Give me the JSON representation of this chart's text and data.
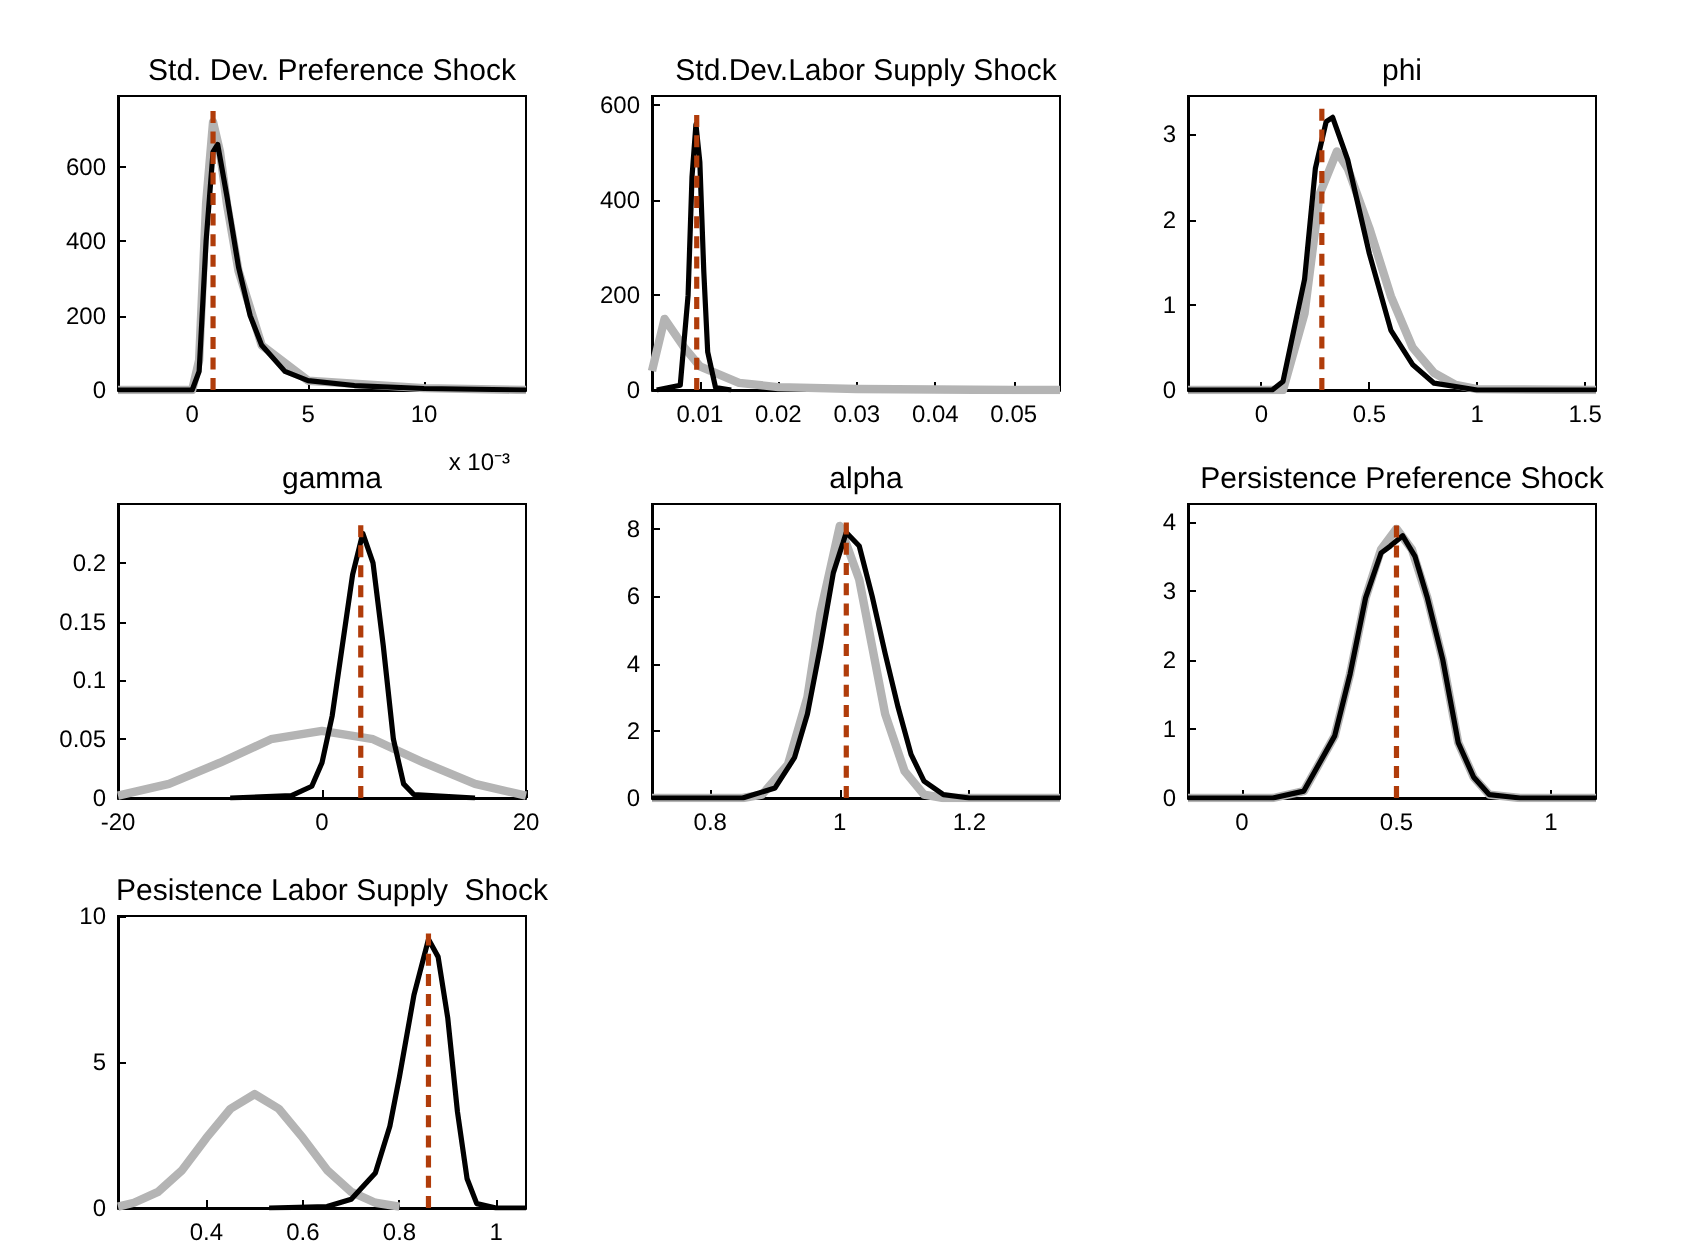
{
  "chart_data": [
    {
      "type": "line",
      "title": "Std. Dev. Preference Shock",
      "xlabel": "x 10⁻³",
      "xlim": [
        -3.2,
        14.4
      ],
      "ylim": [
        0,
        790
      ],
      "xticks": [
        0,
        5,
        10
      ],
      "yticks": [
        0,
        200,
        400,
        600
      ],
      "series": [
        {
          "color": "#b4b4b4",
          "x": [
            -3.2,
            0,
            0.3,
            0.6,
            0.9,
            1.2,
            1.5,
            2,
            3,
            5,
            10,
            14.4
          ],
          "values": [
            0,
            0,
            80,
            500,
            720,
            640,
            500,
            320,
            120,
            25,
            5,
            0
          ]
        },
        {
          "color": "#000000",
          "x": [
            -3.2,
            0,
            0.3,
            0.6,
            0.9,
            1.1,
            1.5,
            2,
            2.5,
            3,
            4,
            5,
            7,
            10,
            14.4
          ],
          "values": [
            0,
            0,
            50,
            400,
            640,
            660,
            520,
            330,
            200,
            120,
            50,
            25,
            12,
            4,
            0
          ]
        },
        {
          "color": "#b03c0a",
          "line_style": "dashed",
          "x": [
            0.9,
            0.9
          ],
          "values": [
            0,
            750
          ]
        }
      ]
    },
    {
      "type": "line",
      "title": "Std.Dev.Labor Supply Shock",
      "xlim": [
        0.0039,
        0.0559
      ],
      "ylim": [
        0,
        620
      ],
      "xticks": [
        0.01,
        0.02,
        0.03,
        0.04,
        0.05
      ],
      "yticks": [
        0,
        200,
        400,
        600
      ],
      "series": [
        {
          "color": "#b4b4b4",
          "x": [
            0.0039,
            0.0055,
            0.008,
            0.01,
            0.015,
            0.02,
            0.03,
            0.05,
            0.0559
          ],
          "values": [
            40,
            150,
            90,
            50,
            15,
            6,
            2,
            0,
            0
          ]
        },
        {
          "color": "#000000",
          "x": [
            0.0045,
            0.0075,
            0.0085,
            0.009,
            0.0095,
            0.01,
            0.0105,
            0.011,
            0.012,
            0.014
          ],
          "values": [
            0,
            10,
            200,
            450,
            560,
            480,
            250,
            80,
            5,
            0
          ]
        },
        {
          "color": "#b03c0a",
          "line_style": "dashed",
          "x": [
            0.0096,
            0.0096
          ],
          "values": [
            0,
            580
          ]
        }
      ]
    },
    {
      "type": "line",
      "title": "phi",
      "xlim": [
        -0.34,
        1.55
      ],
      "ylim": [
        0,
        3.45
      ],
      "xticks": [
        0,
        0.5,
        1,
        1.5
      ],
      "yticks": [
        0,
        1,
        2,
        3
      ],
      "series": [
        {
          "color": "#b4b4b4",
          "x": [
            -0.34,
            0.1,
            0.2,
            0.27,
            0.35,
            0.4,
            0.5,
            0.6,
            0.7,
            0.8,
            0.9,
            1.0,
            1.55
          ],
          "values": [
            0,
            0,
            0.9,
            2.3,
            2.8,
            2.6,
            1.9,
            1.1,
            0.5,
            0.2,
            0.06,
            0.01,
            0
          ]
        },
        {
          "color": "#000000",
          "x": [
            -0.34,
            0.05,
            0.1,
            0.2,
            0.25,
            0.3,
            0.33,
            0.4,
            0.5,
            0.6,
            0.7,
            0.8,
            1,
            1.55
          ],
          "values": [
            0,
            0,
            0.1,
            1.3,
            2.6,
            3.15,
            3.2,
            2.7,
            1.6,
            0.7,
            0.3,
            0.08,
            0,
            0
          ]
        },
        {
          "color": "#b03c0a",
          "line_style": "dashed",
          "x": [
            0.28,
            0.28
          ],
          "values": [
            0,
            3.3
          ]
        }
      ]
    },
    {
      "type": "line",
      "title": "gamma",
      "xlim": [
        -20,
        20
      ],
      "ylim": [
        0,
        0.25
      ],
      "xticks": [
        -20,
        0,
        20
      ],
      "yticks": [
        0,
        0.05,
        0.1,
        0.15,
        0.2
      ],
      "series": [
        {
          "color": "#b4b4b4",
          "x": [
            -20,
            -15,
            -10,
            -5,
            0,
            5,
            10,
            15,
            20
          ],
          "values": [
            0.002,
            0.012,
            0.03,
            0.05,
            0.057,
            0.05,
            0.03,
            0.012,
            0.002
          ]
        },
        {
          "color": "#000000",
          "x": [
            -9,
            -3,
            -1,
            0,
            1,
            2,
            3,
            4,
            5,
            6,
            7,
            8,
            9,
            15
          ],
          "values": [
            0,
            0.002,
            0.01,
            0.03,
            0.07,
            0.13,
            0.19,
            0.225,
            0.2,
            0.13,
            0.05,
            0.012,
            0.003,
            0
          ]
        },
        {
          "color": "#b03c0a",
          "line_style": "dashed",
          "x": [
            3.8,
            3.8
          ],
          "values": [
            0,
            0.232
          ]
        }
      ]
    },
    {
      "type": "line",
      "title": "alpha",
      "xlim": [
        0.71,
        1.34
      ],
      "ylim": [
        0,
        8.75
      ],
      "xticks": [
        0.8,
        1,
        1.2
      ],
      "yticks": [
        0,
        2,
        4,
        6,
        8
      ],
      "series": [
        {
          "color": "#b4b4b4",
          "x": [
            0.71,
            0.85,
            0.88,
            0.92,
            0.95,
            0.97,
            1,
            1.03,
            1.05,
            1.07,
            1.1,
            1.13,
            1.16,
            1.34
          ],
          "values": [
            0,
            0,
            0.1,
            1,
            3,
            5.5,
            8.1,
            6.5,
            4.5,
            2.5,
            0.8,
            0.1,
            0,
            0
          ]
        },
        {
          "color": "#000000",
          "x": [
            0.71,
            0.85,
            0.9,
            0.93,
            0.95,
            0.97,
            0.99,
            1.01,
            1.03,
            1.05,
            1.07,
            1.09,
            1.11,
            1.13,
            1.16,
            1.2,
            1.34
          ],
          "values": [
            0,
            0,
            0.3,
            1.2,
            2.5,
            4.5,
            6.7,
            7.9,
            7.5,
            6,
            4.3,
            2.7,
            1.3,
            0.5,
            0.1,
            0,
            0
          ]
        },
        {
          "color": "#b03c0a",
          "line_style": "dashed",
          "x": [
            1.01,
            1.01
          ],
          "values": [
            0,
            8.2
          ]
        }
      ]
    },
    {
      "type": "line",
      "title": "Persistence Preference Shock",
      "xlim": [
        -0.175,
        1.146
      ],
      "ylim": [
        0,
        4.26
      ],
      "xticks": [
        0,
        0.5,
        1
      ],
      "yticks": [
        0,
        1,
        2,
        3,
        4
      ],
      "series": [
        {
          "color": "#b4b4b4",
          "x": [
            -0.175,
            0.1,
            0.2,
            0.3,
            0.35,
            0.4,
            0.45,
            0.5,
            0.55,
            0.6,
            0.65,
            0.7,
            0.75,
            0.8,
            0.9,
            1.146
          ],
          "values": [
            0,
            0,
            0.1,
            0.9,
            1.8,
            2.9,
            3.6,
            3.9,
            3.6,
            2.9,
            2,
            0.8,
            0.3,
            0.05,
            0,
            0
          ]
        },
        {
          "color": "#000000",
          "x": [
            -0.175,
            0.1,
            0.2,
            0.3,
            0.35,
            0.4,
            0.45,
            0.48,
            0.52,
            0.56,
            0.6,
            0.65,
            0.7,
            0.75,
            0.8,
            0.9,
            1.146
          ],
          "values": [
            0,
            0,
            0.1,
            0.9,
            1.8,
            2.9,
            3.55,
            3.65,
            3.8,
            3.5,
            2.9,
            2,
            0.8,
            0.3,
            0.05,
            0,
            0
          ]
        },
        {
          "color": "#b03c0a",
          "line_style": "dashed",
          "x": [
            0.5,
            0.5
          ],
          "values": [
            0,
            3.95
          ]
        }
      ]
    },
    {
      "type": "line",
      "title": "Pesistence Labor Supply  Shock",
      "xlim": [
        0.217,
        1.062
      ],
      "ylim": [
        0,
        10
      ],
      "xticks": [
        0.4,
        0.6,
        0.8,
        1
      ],
      "yticks": [
        0,
        5,
        10
      ],
      "series": [
        {
          "color": "#b4b4b4",
          "x": [
            0.217,
            0.25,
            0.3,
            0.35,
            0.4,
            0.45,
            0.5,
            0.55,
            0.6,
            0.65,
            0.7,
            0.75,
            0.8
          ],
          "values": [
            0.05,
            0.18,
            0.55,
            1.3,
            2.4,
            3.4,
            3.9,
            3.4,
            2.4,
            1.3,
            0.55,
            0.18,
            0.05
          ]
        },
        {
          "color": "#000000",
          "x": [
            0.53,
            0.65,
            0.7,
            0.75,
            0.78,
            0.8,
            0.83,
            0.86,
            0.88,
            0.9,
            0.92,
            0.94,
            0.96,
            1.0,
            1.062
          ],
          "values": [
            0,
            0.05,
            0.3,
            1.2,
            2.8,
            4.5,
            7.3,
            9.2,
            8.6,
            6.5,
            3.3,
            1,
            0.15,
            0,
            0
          ]
        },
        {
          "color": "#b03c0a",
          "line_style": "dashed",
          "x": [
            0.86,
            0.86
          ],
          "values": [
            0,
            9.4
          ]
        }
      ]
    }
  ]
}
